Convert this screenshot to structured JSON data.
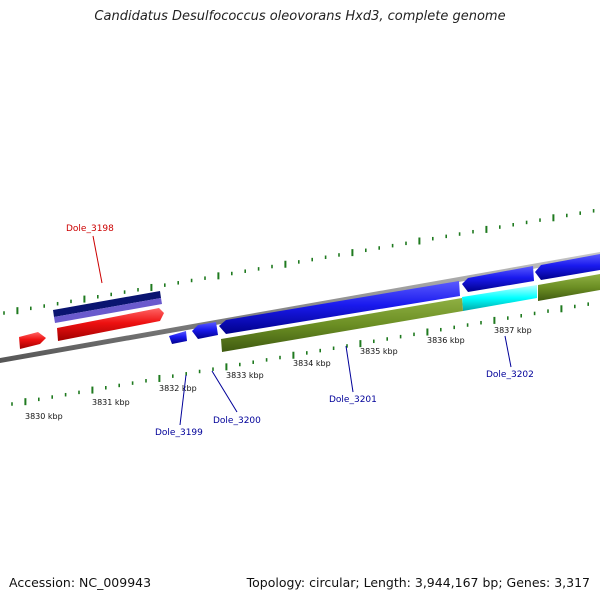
{
  "title": "Candidatus Desulfococcus oleovorans Hxd3, complete genome",
  "footer": {
    "accession": "Accession: NC_009943",
    "topology": "Topology: circular; Length: 3,944,167 bp; Genes: 3,317"
  },
  "scale_labels": [
    "3830 kbp",
    "3831 kbp",
    "3832 kbp",
    "3833 kbp",
    "3834 kbp",
    "3835 kbp",
    "3836 kbp",
    "3837 kbp"
  ],
  "gene_labels": {
    "dole_3198": "Dole_3198",
    "dole_3199": "Dole_3199",
    "dole_3200": "Dole_3200",
    "dole_3201": "Dole_3201",
    "dole_3202": "Dole_3202"
  },
  "colors": {
    "backbone": "#8a8a8a",
    "tick": "#1f7a1f",
    "red_feature": "#ee1111",
    "navy_feature": "#0a1470",
    "purple_feature": "#6a5acd",
    "blue_feature": "#1a1aee",
    "olive_feature": "#6b8e23",
    "cyan_feature": "#00ffff",
    "label_red": "#cc0000",
    "label_blue": "#000099"
  }
}
